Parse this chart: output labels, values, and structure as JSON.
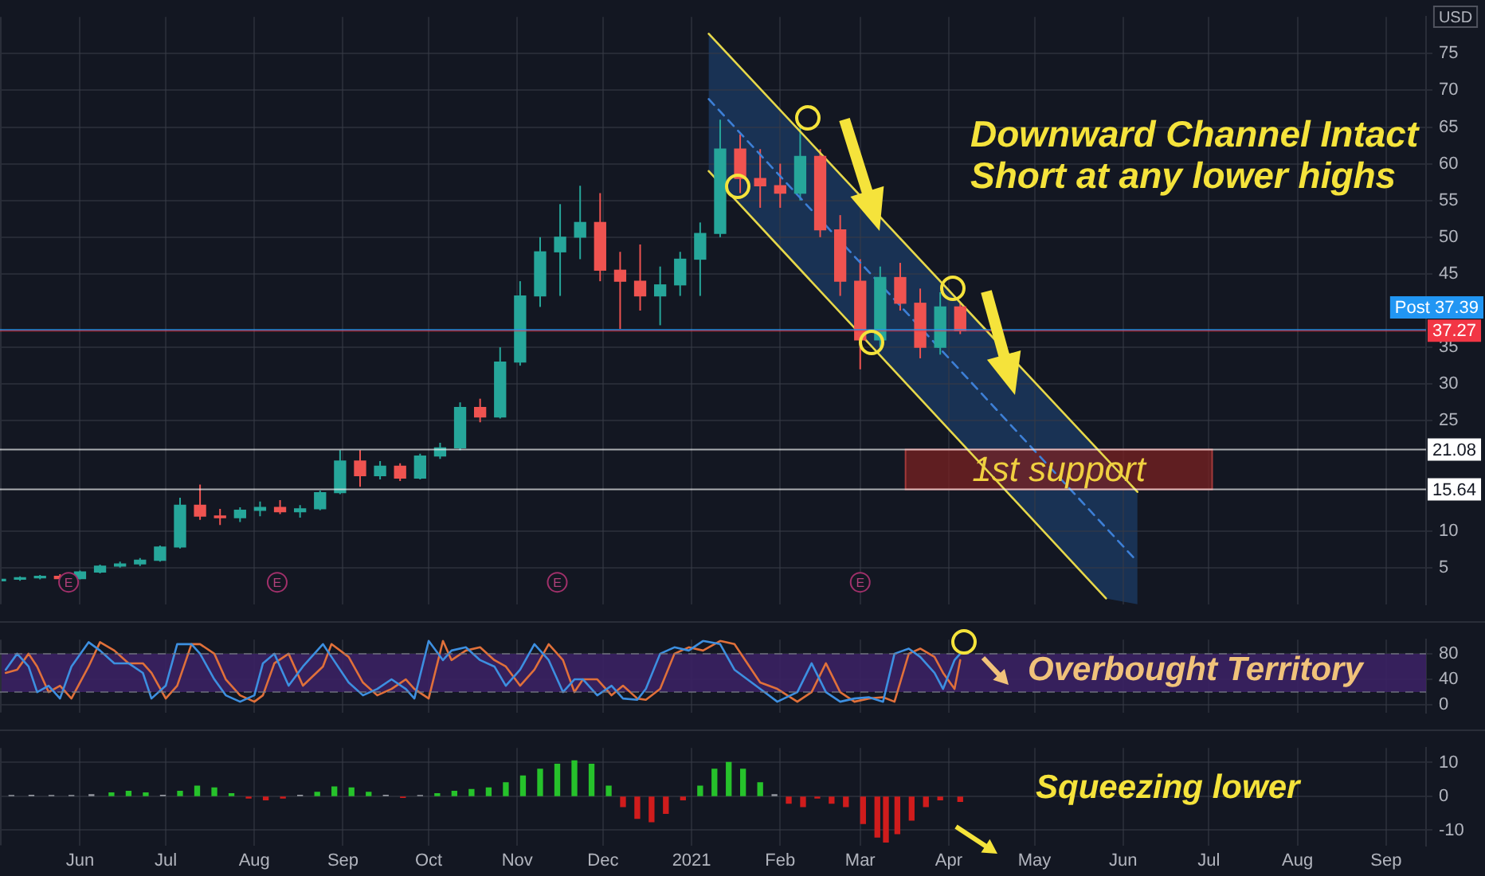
{
  "chart_data": [
    {
      "type": "candlestick",
      "ylabel": "USD",
      "x": [
        "2020-05-04",
        "2020-05-11",
        "2020-05-18",
        "2020-05-25",
        "2020-06-01",
        "2020-06-08",
        "2020-06-15",
        "2020-06-22",
        "2020-06-29",
        "2020-07-06",
        "2020-07-13",
        "2020-07-20",
        "2020-07-27",
        "2020-08-03",
        "2020-08-10",
        "2020-08-17",
        "2020-08-24",
        "2020-08-31",
        "2020-09-07",
        "2020-09-14",
        "2020-09-21",
        "2020-09-28",
        "2020-10-05",
        "2020-10-12",
        "2020-10-19",
        "2020-10-26",
        "2020-11-02",
        "2020-11-09",
        "2020-11-16",
        "2020-11-23",
        "2020-11-30",
        "2020-12-07",
        "2020-12-14",
        "2020-12-21",
        "2020-12-28",
        "2021-01-04",
        "2021-01-11",
        "2021-01-18",
        "2021-01-25",
        "2021-02-01",
        "2021-02-08",
        "2021-02-15",
        "2021-02-22",
        "2021-03-01",
        "2021-03-08",
        "2021-03-15",
        "2021-03-22",
        "2021-03-29",
        "2021-04-05"
      ],
      "ohlc": [
        [
          3.2,
          3.6,
          3.0,
          3.4
        ],
        [
          3.4,
          3.8,
          3.2,
          3.6
        ],
        [
          3.6,
          4.0,
          3.4,
          3.8
        ],
        [
          3.8,
          4.1,
          3.3,
          3.5
        ],
        [
          3.5,
          4.6,
          3.4,
          4.4
        ],
        [
          4.4,
          5.4,
          4.2,
          5.2
        ],
        [
          5.2,
          5.8,
          5.0,
          5.5
        ],
        [
          5.5,
          6.3,
          5.2,
          6.0
        ],
        [
          6.0,
          8.0,
          5.8,
          7.8
        ],
        [
          7.8,
          14.5,
          7.6,
          13.5
        ],
        [
          13.5,
          16.3,
          11.5,
          12.0
        ],
        [
          12.0,
          13.0,
          10.8,
          11.8
        ],
        [
          11.8,
          13.2,
          11.2,
          12.8
        ],
        [
          12.8,
          14.0,
          12.0,
          13.2
        ],
        [
          13.2,
          14.2,
          12.3,
          12.6
        ],
        [
          12.6,
          13.5,
          11.8,
          13.0
        ],
        [
          13.0,
          15.5,
          12.8,
          15.2
        ],
        [
          15.2,
          21.0,
          15.0,
          19.5
        ],
        [
          19.5,
          21.0,
          16.0,
          17.5
        ],
        [
          17.5,
          19.5,
          17.0,
          18.8
        ],
        [
          18.8,
          19.2,
          16.8,
          17.2
        ],
        [
          17.2,
          20.5,
          17.0,
          20.2
        ],
        [
          20.2,
          22.0,
          19.8,
          21.3
        ],
        [
          21.3,
          27.5,
          21.0,
          26.8
        ],
        [
          26.8,
          28.0,
          24.8,
          25.5
        ],
        [
          25.5,
          35.0,
          25.3,
          33.0
        ],
        [
          33.0,
          44.0,
          32.5,
          42.0
        ],
        [
          42.0,
          50.0,
          40.5,
          48.0
        ],
        [
          48.0,
          54.5,
          42.0,
          50.0
        ],
        [
          50.0,
          57.0,
          47.0,
          52.0
        ],
        [
          52.0,
          56.0,
          44.0,
          45.5
        ],
        [
          45.5,
          48.0,
          37.5,
          44.0
        ],
        [
          44.0,
          49.0,
          40.0,
          42.0
        ],
        [
          42.0,
          46.0,
          38.0,
          43.5
        ],
        [
          43.5,
          48.0,
          42.0,
          47.0
        ],
        [
          47.0,
          52.0,
          42.0,
          50.5
        ],
        [
          50.5,
          66.0,
          50.0,
          62.0
        ],
        [
          62.0,
          64.0,
          56.0,
          58.0
        ],
        [
          58.0,
          62.0,
          54.0,
          57.0
        ],
        [
          57.0,
          60.0,
          54.0,
          56.0
        ],
        [
          56.0,
          65.0,
          55.0,
          61.0
        ],
        [
          61.0,
          62.0,
          50.0,
          51.0
        ],
        [
          51.0,
          53.0,
          42.0,
          44.0
        ],
        [
          44.0,
          47.0,
          32.0,
          36.0
        ],
        [
          36.0,
          46.0,
          35.0,
          44.5
        ],
        [
          44.5,
          46.5,
          40.0,
          41.0
        ],
        [
          41.0,
          43.0,
          33.5,
          35.0
        ],
        [
          35.0,
          42.5,
          34.0,
          40.5
        ],
        [
          40.5,
          41.0,
          36.8,
          37.27
        ]
      ],
      "series": [
        {
          "type": "line",
          "x": [
            "2021-01-07",
            "2021-06-06"
          ],
          "values": [
            77.7,
            15.3
          ],
          "color": "#e6d84a"
        },
        {
          "type": "line",
          "x": [
            "2021-01-07",
            "2021-06-06"
          ],
          "values": [
            68.8,
            5.8
          ],
          "color": "#3d7fd6",
          "line_style": "dashed"
        },
        {
          "type": "line",
          "x": [
            "2021-01-07",
            "2021-05-26"
          ],
          "values": [
            59,
            0.8
          ],
          "color": "#e6d84a"
        }
      ],
      "xlim": [
        "2020-05-04",
        "2021-09-15"
      ],
      "xticks": [
        {
          "value": "2020-06-01",
          "label": null
        },
        {
          "value": "2020-07-01",
          "label": null
        },
        {
          "value": "2020-08-01",
          "label": null
        },
        {
          "value": "2020-09-01",
          "label": null
        },
        {
          "value": "2020-10-01",
          "label": null
        },
        {
          "value": "2020-11-01",
          "label": null
        },
        {
          "value": "2020-12-01",
          "label": null
        },
        {
          "value": "2021-01-01",
          "label": null
        },
        {
          "value": "2021-02-01",
          "label": null
        },
        {
          "value": "2021-03-01",
          "label": null
        },
        {
          "value": "2021-04-01",
          "label": null
        },
        {
          "value": "2021-05-01",
          "label": null
        },
        {
          "value": "2021-06-01",
          "label": null
        },
        {
          "value": "2021-07-01",
          "label": null
        },
        {
          "value": "2021-08-01",
          "label": null
        },
        {
          "value": "2021-09-01",
          "label": null
        }
      ],
      "ylim": [
        0,
        80
      ],
      "yticks": [
        5,
        10,
        25,
        30,
        35,
        45,
        50,
        55,
        60,
        65,
        70,
        75
      ],
      "grid": true,
      "tick_labels": "y",
      "ref_lines": [
        {
          "axis": "y",
          "value": 37.27,
          "label": "37.27",
          "color": "#f23645"
        },
        {
          "axis": "y",
          "value": 37.39,
          "label": "Post 37.39",
          "color": "#2196f3"
        },
        {
          "axis": "y",
          "value": 21.08,
          "label": "21.08",
          "color": "#ffffff"
        },
        {
          "axis": "y",
          "value": 15.64,
          "label": "15.64",
          "color": "#ffffff"
        }
      ],
      "bands": [
        {
          "axis": "y",
          "from": 15.64,
          "to": 21.08,
          "label": "1st support",
          "color": "#7a2222"
        }
      ],
      "annotations": [
        "Downward Channel Intact",
        "Short at any lower highs",
        {
          "text": "E",
          "x": "2020-05-28",
          "y": 3
        },
        {
          "text": "E",
          "x": "2020-08-09",
          "y": 3
        },
        {
          "text": "E",
          "x": "2020-11-15",
          "y": 3
        },
        {
          "text": "E",
          "x": "2021-03-01",
          "y": 3
        }
      ]
    },
    {
      "type": "line",
      "x": [
        "2020-05-06",
        "2020-05-10",
        "2020-05-14",
        "2020-05-17",
        "2020-05-21",
        "2020-05-25",
        "2020-05-29",
        "2020-06-04",
        "2020-06-08",
        "2020-06-13",
        "2020-06-18",
        "2020-06-23",
        "2020-06-26",
        "2020-07-01",
        "2020-07-05",
        "2020-07-10",
        "2020-07-13",
        "2020-07-18",
        "2020-07-22",
        "2020-07-27",
        "2020-08-01",
        "2020-08-04",
        "2020-08-08",
        "2020-08-13",
        "2020-08-18",
        "2020-08-25",
        "2020-08-28",
        "2020-09-03",
        "2020-09-08",
        "2020-09-13",
        "2020-09-18",
        "2020-09-23",
        "2020-09-26",
        "2020-10-01",
        "2020-10-06",
        "2020-10-09",
        "2020-10-14",
        "2020-10-19",
        "2020-10-24",
        "2020-10-28",
        "2020-11-02",
        "2020-11-07",
        "2020-11-12",
        "2020-11-17",
        "2020-11-21",
        "2020-11-24",
        "2020-11-29",
        "2020-12-04",
        "2020-12-08",
        "2020-12-13",
        "2020-12-16",
        "2020-12-21",
        "2020-12-26",
        "2020-12-31",
        "2021-01-05",
        "2021-01-11",
        "2021-01-16",
        "2021-01-22",
        "2021-01-25",
        "2021-01-31",
        "2021-02-07",
        "2021-02-12",
        "2021-02-17",
        "2021-02-22",
        "2021-02-27",
        "2021-03-04",
        "2021-03-09",
        "2021-03-13",
        "2021-03-18",
        "2021-03-22",
        "2021-03-27",
        "2021-03-30",
        "2021-04-03",
        "2021-04-05"
      ],
      "series": [
        {
          "color": "#3d8fe0",
          "values": [
            55,
            80,
            60,
            20,
            30,
            10,
            60,
            98,
            85,
            65,
            65,
            50,
            10,
            30,
            95,
            95,
            80,
            40,
            15,
            5,
            15,
            65,
            80,
            30,
            60,
            95,
            75,
            35,
            15,
            25,
            40,
            25,
            10,
            100,
            70,
            85,
            90,
            70,
            60,
            30,
            55,
            95,
            70,
            20,
            40,
            40,
            15,
            30,
            10,
            8,
            25,
            80,
            90,
            85,
            100,
            95,
            55,
            35,
            25,
            5,
            20,
            65,
            20,
            5,
            10,
            12,
            5,
            80,
            88,
            75,
            50,
            25,
            70,
            80
          ]
        },
        {
          "color": "#e0703a",
          "values": [
            50,
            55,
            80,
            60,
            20,
            30,
            10,
            60,
            98,
            85,
            65,
            65,
            50,
            10,
            30,
            95,
            95,
            80,
            40,
            15,
            5,
            15,
            65,
            80,
            30,
            60,
            95,
            75,
            35,
            15,
            25,
            40,
            25,
            10,
            100,
            70,
            85,
            90,
            70,
            60,
            30,
            55,
            95,
            70,
            20,
            40,
            40,
            15,
            30,
            10,
            8,
            25,
            80,
            90,
            85,
            100,
            95,
            55,
            35,
            25,
            5,
            20,
            65,
            20,
            5,
            10,
            12,
            5,
            80,
            88,
            75,
            50,
            25,
            70
          ]
        }
      ],
      "xlim": [
        "2020-05-04",
        "2021-09-15"
      ],
      "xticks": [
        {
          "value": "2020-06-01",
          "label": null
        },
        {
          "value": "2020-07-01",
          "label": null
        },
        {
          "value": "2020-08-01",
          "label": null
        },
        {
          "value": "2020-09-01",
          "label": null
        },
        {
          "value": "2020-10-01",
          "label": null
        },
        {
          "value": "2020-11-01",
          "label": null
        },
        {
          "value": "2020-12-01",
          "label": null
        },
        {
          "value": "2021-01-01",
          "label": null
        },
        {
          "value": "2021-02-01",
          "label": null
        },
        {
          "value": "2021-03-01",
          "label": null
        },
        {
          "value": "2021-04-01",
          "label": null
        },
        {
          "value": "2021-05-01",
          "label": null
        },
        {
          "value": "2021-06-01",
          "label": null
        },
        {
          "value": "2021-07-01",
          "label": null
        },
        {
          "value": "2021-08-01",
          "label": null
        },
        {
          "value": "2021-09-01",
          "label": null
        }
      ],
      "ylim": [
        -12,
        102
      ],
      "yticks": [
        0,
        40,
        80
      ],
      "grid": true,
      "tick_labels": "y",
      "bands": [
        {
          "axis": "y",
          "from": 20,
          "to": 80,
          "color": "#3b2163"
        }
      ],
      "ref_lines": [
        {
          "axis": "y",
          "value": 80,
          "label": null,
          "color": "#787b86",
          "line_style": "dashed"
        },
        {
          "axis": "y",
          "value": 20,
          "label": null,
          "color": "#787b86",
          "line_style": "dashed"
        }
      ],
      "annotations": [
        "Overbought Territory"
      ]
    },
    {
      "type": "bar",
      "x": [
        "2020-05-08",
        "2020-05-15",
        "2020-05-22",
        "2020-05-29",
        "2020-06-05",
        "2020-06-12",
        "2020-06-18",
        "2020-06-24",
        "2020-06-30",
        "2020-07-06",
        "2020-07-12",
        "2020-07-18",
        "2020-07-24",
        "2020-07-30",
        "2020-08-05",
        "2020-08-11",
        "2020-08-17",
        "2020-08-23",
        "2020-08-29",
        "2020-09-04",
        "2020-09-10",
        "2020-09-16",
        "2020-09-22",
        "2020-09-28",
        "2020-10-04",
        "2020-10-10",
        "2020-10-16",
        "2020-10-22",
        "2020-10-28",
        "2020-11-03",
        "2020-11-09",
        "2020-11-15",
        "2020-11-21",
        "2020-11-27",
        "2020-12-03",
        "2020-12-08",
        "2020-12-13",
        "2020-12-18",
        "2020-12-23",
        "2020-12-29",
        "2021-01-04",
        "2021-01-09",
        "2021-01-14",
        "2021-01-19",
        "2021-01-25",
        "2021-01-30",
        "2021-02-04",
        "2021-02-09",
        "2021-02-14",
        "2021-02-19",
        "2021-02-24",
        "2021-03-02",
        "2021-03-07",
        "2021-03-10",
        "2021-03-14",
        "2021-03-19",
        "2021-03-24",
        "2021-03-29",
        "2021-04-05"
      ],
      "values": [
        0.2,
        0.3,
        0.2,
        0.2,
        0.5,
        1.0,
        1.5,
        1.0,
        0.3,
        1.5,
        3,
        2.5,
        0.8,
        -0.5,
        -1,
        -0.5,
        0.3,
        1.2,
        2.8,
        2.5,
        1.2,
        0.3,
        -0.3,
        0.2,
        0.8,
        1.5,
        2,
        2.5,
        4,
        6,
        8,
        9.5,
        10.5,
        9.5,
        3,
        -3,
        -6.5,
        -7.5,
        -5,
        -1,
        3,
        8,
        10,
        8,
        4,
        0.5,
        -2,
        -3,
        -0.5,
        -2,
        -3,
        -8,
        -12,
        -13.5,
        -11,
        -7,
        -3,
        -1,
        -1.5
      ],
      "colors": [
        "#9598a1",
        "#9598a1",
        "#9598a1",
        "#9598a1",
        "#9598a1",
        "#26c22b",
        "#26c22b",
        "#26c22b",
        "#9598a1",
        "#26c22b",
        "#26c22b",
        "#26c22b",
        "#26c22b",
        "#d01c1c",
        "#d01c1c",
        "#d01c1c",
        "#9598a1",
        "#26c22b",
        "#26c22b",
        "#26c22b",
        "#26c22b",
        "#9598a1",
        "#d01c1c",
        "#9598a1",
        "#26c22b",
        "#26c22b",
        "#26c22b",
        "#26c22b",
        "#26c22b",
        "#26c22b",
        "#26c22b",
        "#26c22b",
        "#26c22b",
        "#26c22b",
        "#26c22b",
        "#d01c1c",
        "#d01c1c",
        "#d01c1c",
        "#d01c1c",
        "#d01c1c",
        "#26c22b",
        "#26c22b",
        "#26c22b",
        "#26c22b",
        "#26c22b",
        "#9598a1",
        "#d01c1c",
        "#d01c1c",
        "#d01c1c",
        "#d01c1c",
        "#d01c1c",
        "#d01c1c",
        "#d01c1c",
        "#d01c1c",
        "#d01c1c",
        "#d01c1c",
        "#d01c1c",
        "#d01c1c",
        "#d01c1c"
      ],
      "xlim": [
        "2020-05-04",
        "2021-09-15"
      ],
      "xticks": [
        {
          "value": "2020-06-01",
          "label": "Jun"
        },
        {
          "value": "2020-07-01",
          "label": "Jul"
        },
        {
          "value": "2020-08-01",
          "label": "Aug"
        },
        {
          "value": "2020-09-01",
          "label": "Sep"
        },
        {
          "value": "2020-10-01",
          "label": "Oct"
        },
        {
          "value": "2020-11-01",
          "label": "Nov"
        },
        {
          "value": "2020-12-01",
          "label": "Dec"
        },
        {
          "value": "2021-01-01",
          "label": "2021"
        },
        {
          "value": "2021-02-01",
          "label": "Feb"
        },
        {
          "value": "2021-03-01",
          "label": "Mar"
        },
        {
          "value": "2021-04-01",
          "label": "Apr"
        },
        {
          "value": "2021-05-01",
          "label": "May"
        },
        {
          "value": "2021-06-01",
          "label": "Jun"
        },
        {
          "value": "2021-07-01",
          "label": "Jul"
        },
        {
          "value": "2021-08-01",
          "label": "Aug"
        },
        {
          "value": "2021-09-01",
          "label": "Sep"
        }
      ],
      "ylim": [
        -14.5,
        14.3
      ],
      "yticks": [
        -10,
        0,
        10
      ],
      "grid": true,
      "annotations": [
        "Squeezing lower"
      ]
    }
  ]
}
